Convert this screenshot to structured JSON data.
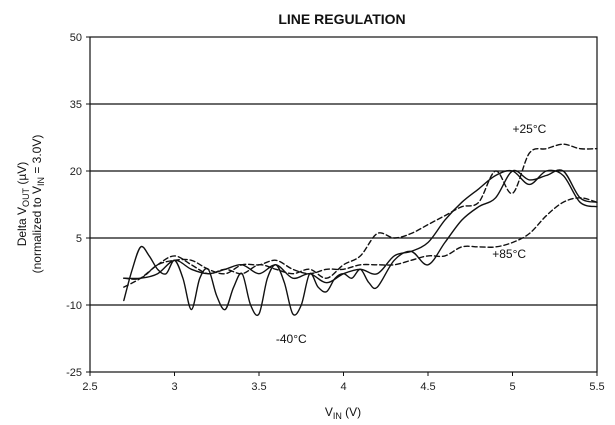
{
  "chart_data": {
    "type": "line",
    "title": "LINE REGULATION",
    "xlabel": {
      "main": "V",
      "sub": "IN",
      "unit": " (V)"
    },
    "ylabel": {
      "line1_main": "Delta V",
      "line1_sub": "OUT",
      "line1_unit": " (µV)",
      "line2_main": "(normalized to V",
      "line2_sub": "IN",
      "line2_unit": " = 3.0V)"
    },
    "xlim": [
      2.5,
      5.5
    ],
    "ylim": [
      -25,
      50
    ],
    "xticks": [
      2.5,
      3,
      3.5,
      4,
      4.5,
      5,
      5.5
    ],
    "xtick_labels": [
      "2.5",
      "3",
      "3.5",
      "4",
      "4.5",
      "5",
      "5.5"
    ],
    "yticks": [
      -25,
      -10,
      5,
      20,
      35,
      50
    ],
    "ytick_labels": [
      "-25",
      "-10",
      "5",
      "20",
      "35",
      "50"
    ],
    "gridlines_y": [
      -10,
      5,
      20,
      35
    ],
    "line_color": "#111111",
    "series": [
      {
        "name": "+25°C",
        "style": "dashed",
        "x": [
          2.7,
          2.8,
          2.9,
          3.0,
          3.1,
          3.2,
          3.3,
          3.4,
          3.5,
          3.6,
          3.7,
          3.8,
          3.9,
          4.0,
          4.1,
          4.2,
          4.3,
          4.4,
          4.5,
          4.6,
          4.7,
          4.8,
          4.9,
          5.0,
          5.1,
          5.2,
          5.3,
          5.4,
          5.5
        ],
        "y": [
          -6,
          -4,
          -1,
          1,
          -1,
          -3,
          -2,
          -3,
          -1,
          -2,
          -3,
          -2,
          -4,
          -1,
          1,
          6,
          5,
          6,
          8,
          10,
          12,
          13,
          20,
          15,
          24,
          25,
          26,
          25,
          25
        ]
      },
      {
        "name": "+85°C",
        "style": "dashed",
        "x": [
          2.7,
          2.8,
          2.9,
          3.0,
          3.1,
          3.2,
          3.3,
          3.4,
          3.5,
          3.6,
          3.7,
          3.8,
          3.9,
          4.0,
          4.1,
          4.2,
          4.3,
          4.4,
          4.5,
          4.6,
          4.7,
          4.8,
          4.9,
          5.0,
          5.1,
          5.2,
          5.3,
          5.4,
          5.5
        ],
        "y": [
          -4,
          -4,
          -1,
          0,
          0,
          -2,
          -3,
          -1,
          -1,
          0,
          -2,
          -3,
          -2,
          -2,
          -1,
          -1,
          -1,
          0,
          1,
          1,
          3,
          3,
          3,
          4,
          6,
          10,
          13,
          14,
          13
        ]
      },
      {
        "name": "-40°C",
        "style": "solid",
        "x": [
          2.7,
          2.75,
          2.8,
          2.85,
          2.9,
          2.95,
          3.0,
          3.05,
          3.1,
          3.15,
          3.2,
          3.25,
          3.3,
          3.35,
          3.4,
          3.45,
          3.5,
          3.55,
          3.6,
          3.65,
          3.7,
          3.75,
          3.8,
          3.85,
          3.9,
          3.95,
          4.0,
          4.05,
          4.1,
          4.15,
          4.2,
          4.3,
          4.4,
          4.5,
          4.6,
          4.7,
          4.8,
          4.9,
          5.0,
          5.1,
          5.2,
          5.3,
          5.4,
          5.5
        ],
        "y": [
          -9,
          -2,
          3,
          1,
          -2,
          -3,
          0,
          -4,
          -11,
          -4,
          -2,
          -8,
          -11,
          -6,
          -3,
          -10,
          -12,
          -4,
          -1,
          -5,
          -12,
          -10,
          -3,
          -6,
          -7,
          -4,
          -3,
          -4,
          -2,
          -5,
          -6,
          0,
          2,
          -1,
          4,
          9,
          12,
          14,
          20,
          18,
          19,
          20,
          14,
          13
        ]
      },
      {
        "name": "",
        "style": "solid",
        "x": [
          2.7,
          2.8,
          2.9,
          3.0,
          3.1,
          3.2,
          3.3,
          3.4,
          3.5,
          3.6,
          3.7,
          3.8,
          3.9,
          4.0,
          4.1,
          4.2,
          4.3,
          4.4,
          4.5,
          4.6,
          4.7,
          4.8,
          4.9,
          5.0,
          5.1,
          5.2,
          5.3,
          5.4,
          5.5
        ],
        "y": [
          -4,
          -4,
          -3,
          0,
          -2,
          -3,
          -2,
          -1,
          -3,
          -1,
          -4,
          -3,
          -5,
          -3,
          -2,
          -3,
          1,
          2,
          4,
          9,
          13,
          16,
          19,
          20,
          17,
          20,
          19,
          13,
          12
        ]
      }
    ],
    "annotations": [
      {
        "text": "+25°C",
        "x": 5.0,
        "y": 28.5
      },
      {
        "text": "+85°C",
        "x": 4.88,
        "y": 0.5
      },
      {
        "text": "-40°C",
        "x": 3.6,
        "y": -18.5
      }
    ]
  }
}
